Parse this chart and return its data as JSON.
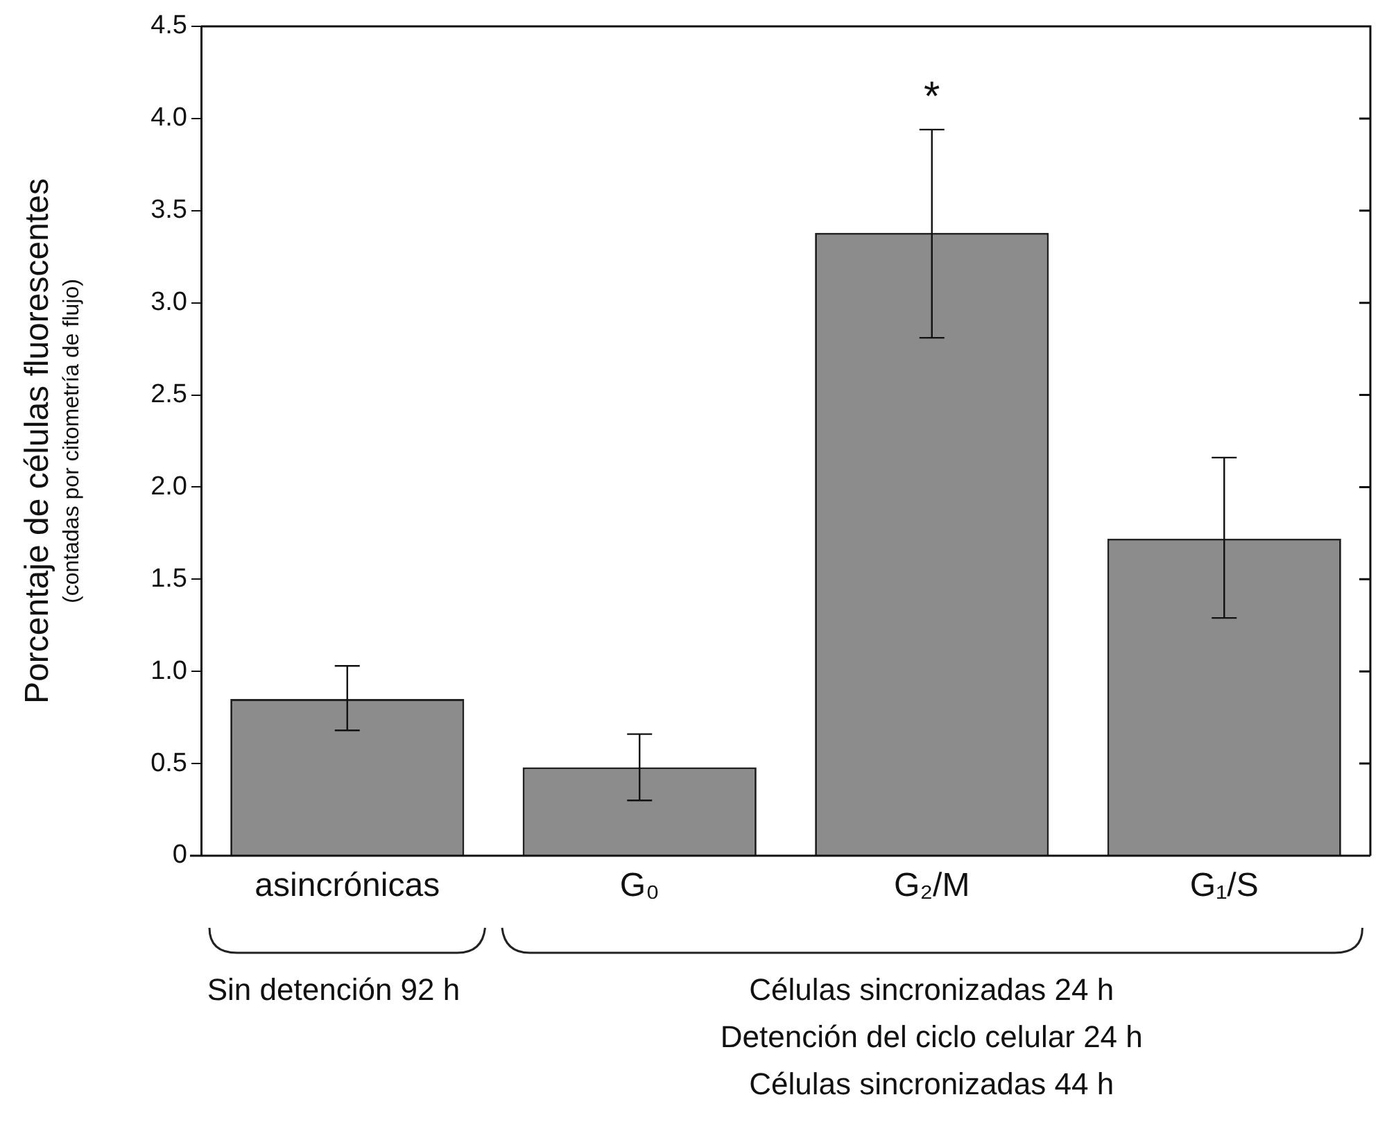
{
  "chart_data": {
    "type": "bar",
    "ylabel": "Porcentaje de células fluorescentes\n(contadas por citometría de flujo)",
    "categories": [
      "asincrónicas",
      "G₀",
      "G₂/M",
      "G₁/S"
    ],
    "values": [
      0.85,
      0.48,
      3.38,
      1.72
    ],
    "errors": [
      [
        0.68,
        1.03
      ],
      [
        0.3,
        0.66
      ],
      [
        2.81,
        3.94
      ],
      [
        1.29,
        2.16
      ]
    ],
    "color": "#8c8c8c",
    "ylim": [
      0,
      4.5
    ],
    "yticks": [
      0,
      0.5,
      {
        "value": 1,
        "label": "1.0"
      },
      1.5,
      {
        "value": 2,
        "label": "2.0"
      },
      2.5,
      {
        "value": 3,
        "label": "3.0"
      },
      3.5,
      {
        "value": 4,
        "label": "4.0"
      },
      4.5
    ],
    "grid": false,
    "legend": false,
    "annotations": [
      {
        "text": "*",
        "x": "G₂/M",
        "y": 3.94
      },
      "Sin detención 92 h",
      "Células sincronizadas 24 h\nDetención del ciclo celular 24 h\nCélulas sincronizadas 44 h"
    ]
  }
}
